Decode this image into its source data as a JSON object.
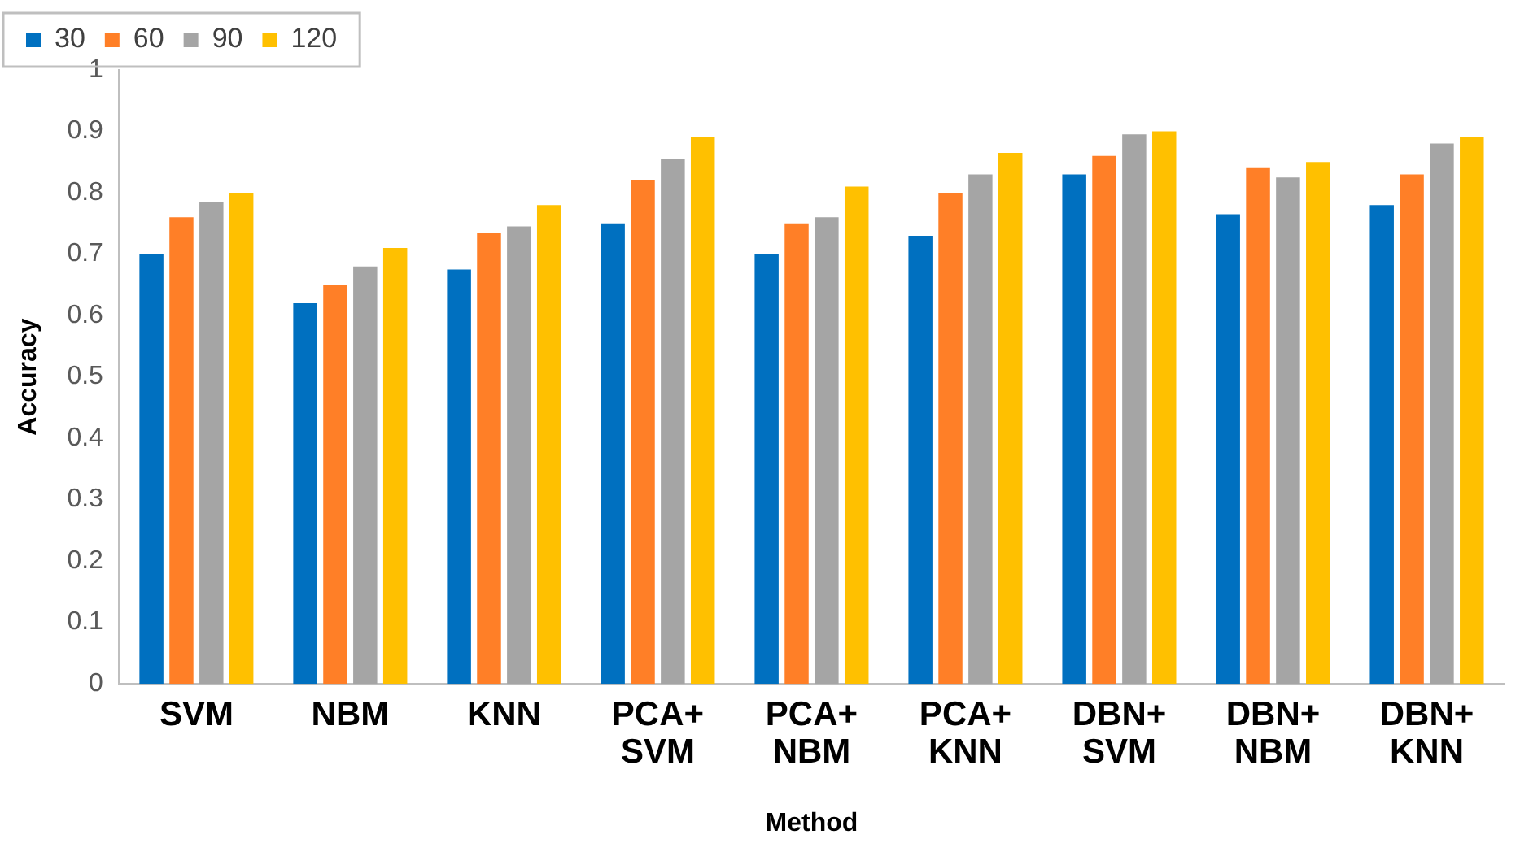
{
  "chart_data": {
    "type": "bar",
    "xlabel": "Method",
    "ylabel": "Accuracy",
    "categories": [
      "SVM",
      "NBM",
      "KNN",
      "PCA+ SVM",
      "PCA+ NBM",
      "PCA+ KNN",
      "DBN+ SVM",
      "DBN+ NBM",
      "DBN+ KNN"
    ],
    "series": [
      {
        "name": "30",
        "color": "#0070c0",
        "values": [
          0.7,
          0.62,
          0.675,
          0.75,
          0.7,
          0.73,
          0.83,
          0.765,
          0.78
        ]
      },
      {
        "name": "60",
        "color": "#ff7f27",
        "values": [
          0.76,
          0.65,
          0.735,
          0.82,
          0.75,
          0.8,
          0.86,
          0.84,
          0.83
        ]
      },
      {
        "name": "90",
        "color": "#a5a5a5",
        "values": [
          0.785,
          0.68,
          0.745,
          0.855,
          0.76,
          0.83,
          0.895,
          0.825,
          0.88
        ]
      },
      {
        "name": "120",
        "color": "#ffc000",
        "values": [
          0.8,
          0.71,
          0.78,
          0.89,
          0.81,
          0.865,
          0.9,
          0.85,
          0.89
        ]
      }
    ],
    "ylim": [
      0,
      1
    ],
    "yticks": [
      0,
      0.1,
      0.2,
      0.3,
      0.4,
      0.5,
      0.6,
      0.7,
      0.8,
      0.9,
      1
    ],
    "grid": false,
    "legend": "top left"
  }
}
